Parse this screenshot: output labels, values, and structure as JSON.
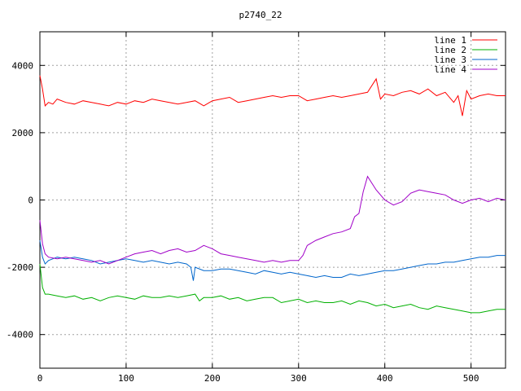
{
  "chart_data": {
    "type": "line",
    "title": "p2740_22",
    "xlabel": "",
    "ylabel": "",
    "xlim": [
      0,
      540
    ],
    "ylim": [
      -5000,
      5000
    ],
    "x_ticks": [
      0,
      100,
      200,
      300,
      400,
      500
    ],
    "y_ticks": [
      -4000,
      -2000,
      0,
      2000,
      4000
    ],
    "grid": true,
    "legend_position": "top-right",
    "series": [
      {
        "name": "line 1",
        "color": "#ff0000",
        "x": [
          0,
          3,
          6,
          10,
          15,
          20,
          30,
          40,
          50,
          60,
          70,
          80,
          90,
          100,
          110,
          120,
          130,
          140,
          150,
          160,
          170,
          180,
          190,
          200,
          210,
          220,
          230,
          240,
          250,
          260,
          270,
          280,
          290,
          300,
          310,
          320,
          330,
          340,
          350,
          360,
          370,
          380,
          390,
          395,
          400,
          410,
          420,
          430,
          440,
          450,
          460,
          470,
          480,
          485,
          490,
          495,
          500,
          510,
          520,
          530,
          540
        ],
        "y": [
          3700,
          3300,
          2800,
          2900,
          2850,
          3000,
          2900,
          2850,
          2950,
          2900,
          2850,
          2800,
          2900,
          2850,
          2950,
          2900,
          3000,
          2950,
          2900,
          2850,
          2900,
          2950,
          2800,
          2950,
          3000,
          3050,
          2900,
          2950,
          3000,
          3050,
          3100,
          3050,
          3100,
          3100,
          2950,
          3000,
          3050,
          3100,
          3050,
          3100,
          3150,
          3200,
          3600,
          3000,
          3150,
          3100,
          3200,
          3250,
          3150,
          3300,
          3100,
          3200,
          2900,
          3100,
          2500,
          3250,
          3000,
          3100,
          3150,
          3100,
          3100
        ]
      },
      {
        "name": "line 2",
        "color": "#00b000",
        "x": [
          0,
          3,
          6,
          10,
          20,
          30,
          40,
          50,
          60,
          70,
          80,
          90,
          100,
          110,
          120,
          130,
          140,
          150,
          160,
          170,
          180,
          185,
          190,
          200,
          210,
          220,
          230,
          240,
          250,
          260,
          270,
          280,
          290,
          300,
          310,
          320,
          330,
          340,
          350,
          360,
          370,
          380,
          390,
          400,
          410,
          420,
          430,
          440,
          450,
          460,
          470,
          480,
          490,
          500,
          510,
          520,
          530,
          540
        ],
        "y": [
          -1900,
          -2600,
          -2800,
          -2800,
          -2850,
          -2900,
          -2850,
          -2950,
          -2900,
          -3000,
          -2900,
          -2850,
          -2900,
          -2950,
          -2850,
          -2900,
          -2900,
          -2850,
          -2900,
          -2850,
          -2800,
          -3000,
          -2900,
          -2900,
          -2850,
          -2950,
          -2900,
          -3000,
          -2950,
          -2900,
          -2900,
          -3050,
          -3000,
          -2950,
          -3050,
          -3000,
          -3050,
          -3050,
          -3000,
          -3100,
          -3000,
          -3050,
          -3150,
          -3100,
          -3200,
          -3150,
          -3100,
          -3200,
          -3250,
          -3150,
          -3200,
          -3250,
          -3300,
          -3350,
          -3350,
          -3300,
          -3250,
          -3250
        ]
      },
      {
        "name": "line 3",
        "color": "#0066cc",
        "x": [
          0,
          3,
          6,
          10,
          20,
          30,
          40,
          50,
          60,
          70,
          80,
          90,
          100,
          110,
          120,
          130,
          140,
          150,
          160,
          170,
          175,
          178,
          180,
          190,
          200,
          210,
          220,
          230,
          240,
          250,
          260,
          270,
          280,
          290,
          300,
          310,
          320,
          330,
          340,
          350,
          360,
          370,
          380,
          390,
          400,
          410,
          420,
          430,
          440,
          450,
          460,
          470,
          480,
          490,
          500,
          510,
          520,
          530,
          540
        ],
        "y": [
          -1200,
          -1700,
          -1900,
          -1800,
          -1700,
          -1750,
          -1700,
          -1750,
          -1800,
          -1900,
          -1850,
          -1800,
          -1750,
          -1800,
          -1850,
          -1800,
          -1850,
          -1900,
          -1850,
          -1900,
          -2000,
          -2400,
          -2000,
          -2100,
          -2100,
          -2050,
          -2050,
          -2100,
          -2150,
          -2200,
          -2100,
          -2150,
          -2200,
          -2150,
          -2200,
          -2250,
          -2300,
          -2250,
          -2300,
          -2300,
          -2200,
          -2250,
          -2200,
          -2150,
          -2100,
          -2100,
          -2050,
          -2000,
          -1950,
          -1900,
          -1900,
          -1850,
          -1850,
          -1800,
          -1750,
          -1700,
          -1700,
          -1650,
          -1650
        ]
      },
      {
        "name": "line 4",
        "color": "#a000c8",
        "x": [
          0,
          3,
          6,
          10,
          20,
          30,
          40,
          50,
          60,
          70,
          80,
          90,
          100,
          110,
          120,
          130,
          140,
          150,
          160,
          170,
          180,
          190,
          200,
          210,
          220,
          230,
          240,
          250,
          260,
          270,
          280,
          290,
          300,
          305,
          310,
          320,
          330,
          340,
          350,
          360,
          365,
          370,
          375,
          380,
          390,
          400,
          410,
          420,
          430,
          440,
          450,
          460,
          470,
          480,
          490,
          500,
          510,
          520,
          530,
          540
        ],
        "y": [
          -600,
          -1300,
          -1600,
          -1700,
          -1750,
          -1700,
          -1750,
          -1800,
          -1850,
          -1800,
          -1900,
          -1800,
          -1700,
          -1600,
          -1550,
          -1500,
          -1600,
          -1500,
          -1450,
          -1550,
          -1500,
          -1350,
          -1450,
          -1600,
          -1650,
          -1700,
          -1750,
          -1800,
          -1850,
          -1800,
          -1850,
          -1800,
          -1800,
          -1650,
          -1350,
          -1200,
          -1100,
          -1000,
          -950,
          -850,
          -500,
          -400,
          250,
          700,
          300,
          0,
          -150,
          -50,
          200,
          300,
          250,
          200,
          150,
          0,
          -100,
          0,
          50,
          -50,
          50,
          0
        ]
      }
    ]
  }
}
